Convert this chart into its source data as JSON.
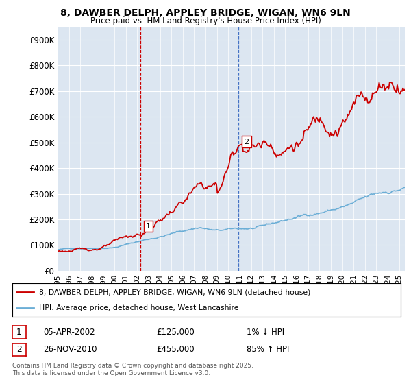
{
  "title_line1": "8, DAWBER DELPH, APPLEY BRIDGE, WIGAN, WN6 9LN",
  "title_line2": "Price paid vs. HM Land Registry's House Price Index (HPI)",
  "ylim": [
    0,
    950000
  ],
  "ytick_labels": [
    "£0",
    "£100K",
    "£200K",
    "£300K",
    "£400K",
    "£500K",
    "£600K",
    "£700K",
    "£800K",
    "£900K"
  ],
  "ytick_values": [
    0,
    100000,
    200000,
    300000,
    400000,
    500000,
    600000,
    700000,
    800000,
    900000
  ],
  "plot_bg_color": "#dce6f1",
  "line1_color": "#cc0000",
  "line2_color": "#6baed6",
  "vline1_color": "#cc0000",
  "vline2_color": "#4472c4",
  "vline1_x": 2002.27,
  "vline2_x": 2010.9,
  "marker1_x": 2002.27,
  "marker1_y": 125000,
  "marker2_x": 2010.9,
  "marker2_y": 455000,
  "legend_line1": "8, DAWBER DELPH, APPLEY BRIDGE, WIGAN, WN6 9LN (detached house)",
  "legend_line2": "HPI: Average price, detached house, West Lancashire",
  "table_row1": [
    "1",
    "05-APR-2002",
    "£125,000",
    "1% ↓ HPI"
  ],
  "table_row2": [
    "2",
    "26-NOV-2010",
    "£455,000",
    "85% ↑ HPI"
  ],
  "footnote": "Contains HM Land Registry data © Crown copyright and database right 2025.\nThis data is licensed under the Open Government Licence v3.0.",
  "xmin": 1995,
  "xmax": 2025.5
}
